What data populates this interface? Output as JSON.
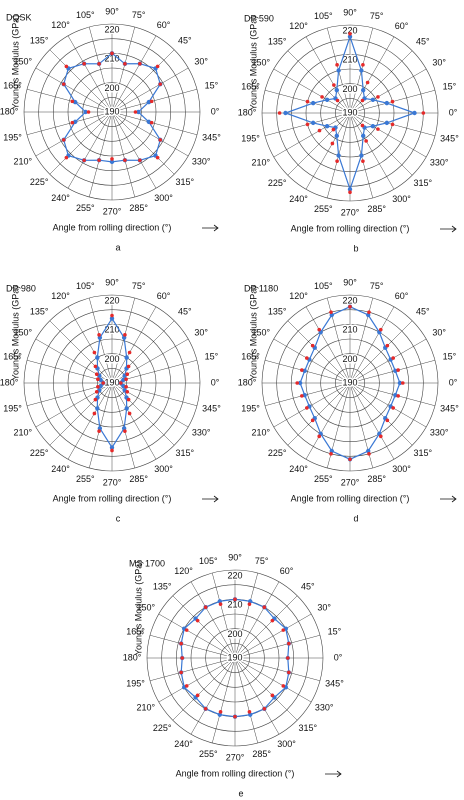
{
  "chart_data": [
    {
      "type": "polar",
      "title": "DQSK",
      "ylabel": "Young's Modulus (GPa)",
      "xlabel": "Angle from rolling direction (°)",
      "caption": "a",
      "x": [
        0,
        15,
        30,
        45,
        60,
        75,
        90,
        105,
        120,
        135,
        150,
        165,
        180,
        195,
        210,
        225,
        240,
        255,
        270,
        285,
        300,
        315,
        330,
        345
      ],
      "rlim": [
        190,
        220
      ],
      "rticks": [
        190,
        200,
        210,
        220
      ],
      "minor_rticks": [
        195,
        205,
        215
      ],
      "xticks": [
        {
          "value": 0,
          "label": "0°"
        },
        {
          "value": 15,
          "label": "15°"
        },
        {
          "value": 30,
          "label": "30°"
        },
        {
          "value": 45,
          "label": "45°"
        },
        {
          "value": 60,
          "label": "60°"
        },
        {
          "value": 75,
          "label": "75°"
        },
        {
          "value": 90,
          "label": "90°"
        },
        {
          "value": 105,
          "label": "105°"
        },
        {
          "value": 120,
          "label": "120°"
        },
        {
          "value": 135,
          "label": "135°"
        },
        {
          "value": 150,
          "label": "150°"
        },
        {
          "value": 165,
          "label": "165°"
        },
        {
          "value": 180,
          "label": "180°"
        },
        {
          "value": 195,
          "label": "195°"
        },
        {
          "value": 210,
          "label": "210°"
        },
        {
          "value": 225,
          "label": "225°"
        },
        {
          "value": 240,
          "label": "240°"
        },
        {
          "value": 255,
          "label": "255°"
        },
        {
          "value": 270,
          "label": "270°"
        },
        {
          "value": 285,
          "label": "285°"
        },
        {
          "value": 300,
          "label": "300°"
        },
        {
          "value": 315,
          "label": "315°"
        },
        {
          "value": 330,
          "label": "330°"
        },
        {
          "value": 345,
          "label": "345°"
        }
      ],
      "series": [
        {
          "color": "#3a78d4",
          "line": true,
          "values": [
            199,
            203,
            209,
            211,
            209,
            207,
            210,
            207,
            209,
            211,
            209,
            203,
            199,
            203,
            209,
            211,
            209,
            207,
            207,
            207,
            209,
            211,
            209,
            203
          ]
        },
        {
          "color": "#e52a2a",
          "line": false,
          "values": [
            198,
            204,
            209,
            212,
            209,
            207,
            210,
            207,
            209,
            212,
            209,
            204,
            198,
            204,
            209,
            212,
            209,
            207,
            206,
            207,
            209,
            212,
            209,
            204
          ]
        }
      ]
    },
    {
      "type": "polar",
      "title": "DP 590",
      "ylabel": "Young's Modulus (GPa)",
      "xlabel": "Angle from rolling direction (°)",
      "caption": "b",
      "x": [
        0,
        15,
        30,
        45,
        60,
        75,
        90,
        105,
        120,
        135,
        150,
        165,
        180,
        195,
        210,
        225,
        240,
        255,
        270,
        285,
        300,
        315,
        330,
        345
      ],
      "rlim": [
        190,
        220
      ],
      "rticks": [
        190,
        200,
        210,
        220
      ],
      "minor_rticks": [
        195,
        205,
        215
      ],
      "xticks": [
        {
          "value": 0,
          "label": "0°"
        },
        {
          "value": 15,
          "label": "15°"
        },
        {
          "value": 30,
          "label": "30°"
        },
        {
          "value": 45,
          "label": "45°"
        },
        {
          "value": 60,
          "label": "60°"
        },
        {
          "value": 75,
          "label": "75°"
        },
        {
          "value": 90,
          "label": "90°"
        },
        {
          "value": 105,
          "label": "105°"
        },
        {
          "value": 120,
          "label": "120°"
        },
        {
          "value": 135,
          "label": "135°"
        },
        {
          "value": 150,
          "label": "150°"
        },
        {
          "value": 165,
          "label": "165°"
        },
        {
          "value": 180,
          "label": "180°"
        },
        {
          "value": 195,
          "label": "195°"
        },
        {
          "value": 210,
          "label": "210°"
        },
        {
          "value": 225,
          "label": "225°"
        },
        {
          "value": 240,
          "label": "240°"
        },
        {
          "value": 255,
          "label": "255°"
        },
        {
          "value": 270,
          "label": "270°"
        },
        {
          "value": 285,
          "label": "285°"
        },
        {
          "value": 300,
          "label": "300°"
        },
        {
          "value": 315,
          "label": "315°"
        },
        {
          "value": 330,
          "label": "330°"
        },
        {
          "value": 345,
          "label": "345°"
        }
      ],
      "series": [
        {
          "color": "#3a78d4",
          "line": true,
          "values": [
            212,
            203,
            199,
            197,
            199,
            205,
            216,
            205,
            199,
            197,
            199,
            203,
            212,
            203,
            199,
            197,
            199,
            205,
            216,
            205,
            199,
            197,
            199,
            203
          ]
        },
        {
          "color": "#e52a2a",
          "line": false,
          "values": [
            215,
            205,
            201,
            196,
            202,
            207,
            217,
            207,
            201,
            196,
            201,
            205,
            214,
            205,
            202,
            198,
            202,
            207,
            217,
            207,
            201,
            196,
            201,
            205
          ]
        }
      ]
    },
    {
      "type": "polar",
      "title": "DP 980",
      "ylabel": "Young's Modulus (GPa)",
      "xlabel": "Angle from rolling direction (°)",
      "caption": "c",
      "x": [
        0,
        15,
        30,
        45,
        60,
        75,
        90,
        105,
        120,
        135,
        150,
        165,
        180,
        195,
        210,
        225,
        240,
        255,
        270,
        285,
        300,
        315,
        330,
        345
      ],
      "rlim": [
        190,
        220
      ],
      "rticks": [
        190,
        200,
        210,
        220
      ],
      "minor_rticks": [
        195,
        205,
        215
      ],
      "xticks": [
        {
          "value": 0,
          "label": "0°"
        },
        {
          "value": 15,
          "label": "15°"
        },
        {
          "value": 30,
          "label": "30°"
        },
        {
          "value": 45,
          "label": "45°"
        },
        {
          "value": 60,
          "label": "60°"
        },
        {
          "value": 75,
          "label": "75°"
        },
        {
          "value": 90,
          "label": "90°"
        },
        {
          "value": 105,
          "label": "105°"
        },
        {
          "value": 120,
          "label": "120°"
        },
        {
          "value": 135,
          "label": "135°"
        },
        {
          "value": 150,
          "label": "150°"
        },
        {
          "value": 165,
          "label": "165°"
        },
        {
          "value": 180,
          "label": "180°"
        },
        {
          "value": 195,
          "label": "195°"
        },
        {
          "value": 210,
          "label": "210°"
        },
        {
          "value": 225,
          "label": "225°"
        },
        {
          "value": 240,
          "label": "240°"
        },
        {
          "value": 255,
          "label": "255°"
        },
        {
          "value": 270,
          "label": "270°"
        },
        {
          "value": 285,
          "label": "285°"
        },
        {
          "value": 300,
          "label": "300°"
        },
        {
          "value": 315,
          "label": "315°"
        },
        {
          "value": 330,
          "label": "330°"
        },
        {
          "value": 345,
          "label": "345°"
        }
      ],
      "series": [
        {
          "color": "#3a78d4",
          "line": true,
          "values": [
            193,
            194,
            195,
            197,
            200,
            206,
            212,
            206,
            200,
            197,
            195,
            194,
            193,
            194,
            195,
            197,
            200,
            206,
            212,
            206,
            200,
            197,
            195,
            194
          ]
        },
        {
          "color": "#e52a2a",
          "line": false,
          "values": [
            193,
            195,
            196,
            198,
            202,
            207,
            213,
            207,
            202,
            198,
            196,
            195,
            193,
            195,
            196,
            198,
            202,
            207,
            213,
            207,
            202,
            198,
            196,
            195
          ]
        }
      ]
    },
    {
      "type": "polar",
      "title": "DP 1180",
      "ylabel": "Young's Modulus (GPa)",
      "xlabel": "Angle from rolling direction (°)",
      "caption": "d",
      "x": [
        0,
        15,
        30,
        45,
        60,
        75,
        90,
        105,
        120,
        135,
        150,
        165,
        180,
        195,
        210,
        225,
        240,
        255,
        270,
        285,
        300,
        315,
        330,
        345
      ],
      "rlim": [
        190,
        220
      ],
      "rticks": [
        190,
        200,
        210,
        220
      ],
      "minor_rticks": [
        195,
        205,
        215
      ],
      "xticks": [
        {
          "value": 0,
          "label": "0°"
        },
        {
          "value": 15,
          "label": "15°"
        },
        {
          "value": 30,
          "label": "30°"
        },
        {
          "value": 45,
          "label": "45°"
        },
        {
          "value": 60,
          "label": "60°"
        },
        {
          "value": 75,
          "label": "75°"
        },
        {
          "value": 90,
          "label": "90°"
        },
        {
          "value": 105,
          "label": "105°"
        },
        {
          "value": 120,
          "label": "120°"
        },
        {
          "value": 135,
          "label": "135°"
        },
        {
          "value": 150,
          "label": "150°"
        },
        {
          "value": 165,
          "label": "165°"
        },
        {
          "value": 180,
          "label": "180°"
        },
        {
          "value": 195,
          "label": "195°"
        },
        {
          "value": 210,
          "label": "210°"
        },
        {
          "value": 225,
          "label": "225°"
        },
        {
          "value": 240,
          "label": "240°"
        },
        {
          "value": 255,
          "label": "255°"
        },
        {
          "value": 270,
          "label": "270°"
        },
        {
          "value": 285,
          "label": "285°"
        },
        {
          "value": 300,
          "label": "300°"
        },
        {
          "value": 315,
          "label": "315°"
        },
        {
          "value": 330,
          "label": "330°"
        },
        {
          "value": 345,
          "label": "345°"
        }
      ],
      "series": [
        {
          "color": "#3a78d4",
          "line": true,
          "values": [
            207,
            206,
            206,
            207,
            210,
            214,
            216,
            214,
            210,
            207,
            206,
            206,
            207,
            206,
            206,
            207,
            210,
            214,
            216,
            214,
            210,
            207,
            206,
            206
          ]
        },
        {
          "color": "#e52a2a",
          "line": false,
          "values": [
            208,
            207,
            207,
            208,
            211,
            215,
            216,
            215,
            211,
            208,
            207,
            207,
            208,
            207,
            207,
            208,
            211,
            215,
            216,
            215,
            211,
            208,
            207,
            207
          ]
        }
      ]
    },
    {
      "type": "polar",
      "title": "MS 1700",
      "ylabel": "Young's Modulus (GPa)",
      "xlabel": "Angle from rolling direction (°)",
      "caption": "e",
      "x": [
        0,
        15,
        30,
        45,
        60,
        75,
        90,
        105,
        120,
        135,
        150,
        165,
        180,
        195,
        210,
        225,
        240,
        255,
        270,
        285,
        300,
        315,
        330,
        345
      ],
      "rlim": [
        190,
        220
      ],
      "rticks": [
        190,
        200,
        210,
        220
      ],
      "minor_rticks": [
        195,
        205,
        215
      ],
      "xticks": [
        {
          "value": 0,
          "label": "0°"
        },
        {
          "value": 15,
          "label": "15°"
        },
        {
          "value": 30,
          "label": "30°"
        },
        {
          "value": 45,
          "label": "45°"
        },
        {
          "value": 60,
          "label": "60°"
        },
        {
          "value": 75,
          "label": "75°"
        },
        {
          "value": 90,
          "label": "90°"
        },
        {
          "value": 105,
          "label": "105°"
        },
        {
          "value": 120,
          "label": "120°"
        },
        {
          "value": 135,
          "label": "135°"
        },
        {
          "value": 150,
          "label": "150°"
        },
        {
          "value": 165,
          "label": "165°"
        },
        {
          "value": 180,
          "label": "180°"
        },
        {
          "value": 195,
          "label": "195°"
        },
        {
          "value": 210,
          "label": "210°"
        },
        {
          "value": 225,
          "label": "225°"
        },
        {
          "value": 240,
          "label": "240°"
        },
        {
          "value": 255,
          "label": "255°"
        },
        {
          "value": 270,
          "label": "270°"
        },
        {
          "value": 285,
          "label": "285°"
        },
        {
          "value": 300,
          "label": "300°"
        },
        {
          "value": 315,
          "label": "315°"
        },
        {
          "value": 330,
          "label": "330°"
        },
        {
          "value": 345,
          "label": "345°"
        }
      ],
      "series": [
        {
          "color": "#3a78d4",
          "line": true,
          "values": [
            208,
            209,
            210,
            209,
            210,
            210,
            210,
            210,
            210,
            209,
            210,
            209,
            208,
            209,
            210,
            209,
            210,
            210,
            210,
            210,
            210,
            209,
            210,
            209
          ]
        },
        {
          "color": "#e52a2a",
          "line": false,
          "values": [
            208,
            209,
            209,
            208,
            210,
            209,
            210,
            209,
            210,
            208,
            209,
            209,
            208,
            209,
            209,
            208,
            210,
            209,
            210,
            209,
            210,
            208,
            209,
            209
          ]
        }
      ]
    }
  ]
}
